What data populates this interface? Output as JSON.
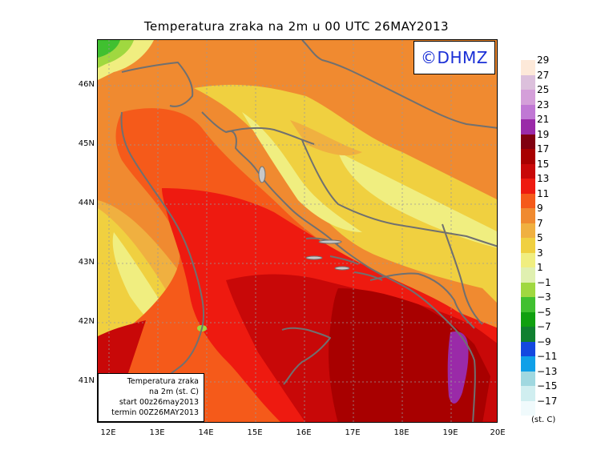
{
  "title": "Temperatura zraka na 2m u 00 UTC 26MAY2013",
  "logo": "©DHMZ",
  "info_box": {
    "line1": "Temperatura zraka",
    "line2": "na 2m (st. C)",
    "line3": "start 00z26may2013",
    "line4": "termin 00Z26MAY2013"
  },
  "lat_labels": [
    "46N",
    "45N",
    "44N",
    "43N",
    "42N",
    "41N"
  ],
  "lon_labels": [
    "12E",
    "13E",
    "14E",
    "15E",
    "16E",
    "17E",
    "18E",
    "19E",
    "20E"
  ],
  "legend": {
    "labels": [
      "29",
      "27",
      "25",
      "23",
      "21",
      "19",
      "17",
      "15",
      "13",
      "11",
      "9",
      "7",
      "5",
      "3",
      "1",
      "−1",
      "−3",
      "−5",
      "−7",
      "−9",
      "−11",
      "−13",
      "−15",
      "−17"
    ],
    "colors": [
      "#fde9d9",
      "#dcc0dc",
      "#d49fd9",
      "#c078d4",
      "#9a2aa8",
      "#800010",
      "#a80000",
      "#c80808",
      "#ee1a10",
      "#f55a1a",
      "#f08a30",
      "#f0b040",
      "#f0d040",
      "#f0ee80",
      "#e0f0b0",
      "#a0d840",
      "#40c030",
      "#10a010",
      "#108030",
      "#1448e0",
      "#10a0e8",
      "#a0d8e0",
      "#d0eef0",
      "#f0fafc"
    ],
    "units": "(st. C)"
  },
  "colors": {
    "sea_warm": "#f55a1a",
    "sea_red": "#ee1a10",
    "sea_deep": "#c80808",
    "south_dark": "#a80000",
    "land_orange": "#f08a30",
    "land_yellow": "#f0d040",
    "land_light": "#f0ee80",
    "purple_patch": "#9a2aa8",
    "green_patch": "#40c030",
    "coast": "#707070",
    "logo_blue": "#1a2fd6"
  }
}
